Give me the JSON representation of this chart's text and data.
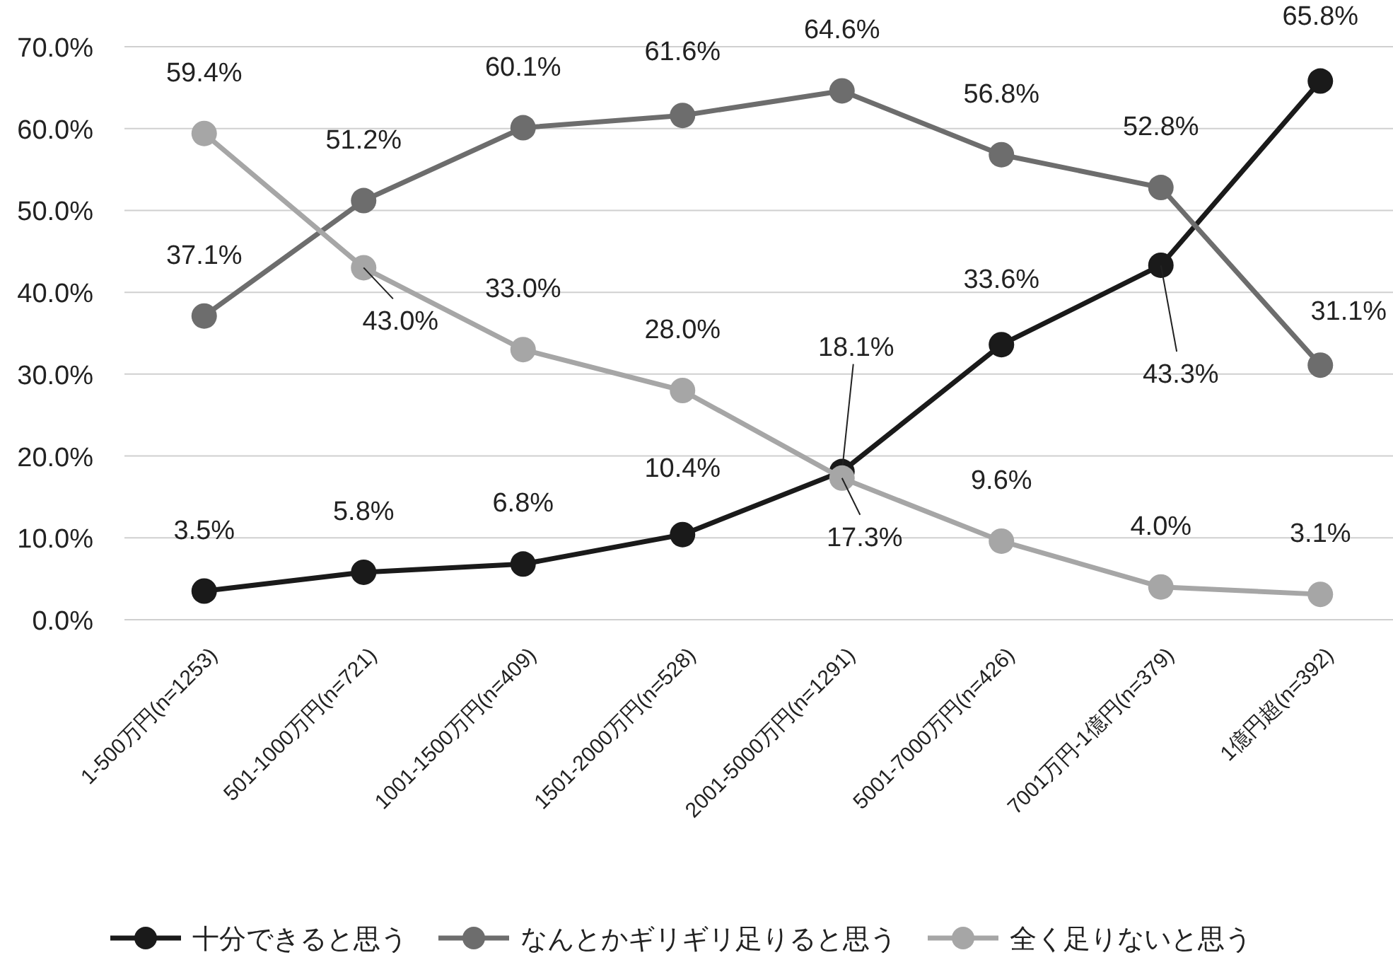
{
  "chart_data": {
    "type": "line",
    "categories": [
      "1-500万円(n=1253)",
      "501-1000万円(n=721)",
      "1001-1500万円(n=409)",
      "1501-2000万円(n=528)",
      "2001-5000万円(n=1291)",
      "5001-7000万円(n=426)",
      "7001万円-1億円(n=379)",
      "1億円超(n=392)"
    ],
    "ylim": [
      0,
      70
    ],
    "yticks": [
      {
        "value": 0,
        "label": "0.0%"
      },
      {
        "value": 10,
        "label": "10.0%"
      },
      {
        "value": 20,
        "label": "20.0%"
      },
      {
        "value": 30,
        "label": "30.0%"
      },
      {
        "value": 40,
        "label": "40.0%"
      },
      {
        "value": 50,
        "label": "50.0%"
      },
      {
        "value": 60,
        "label": "60.0%"
      },
      {
        "value": 70,
        "label": "70.0%"
      }
    ],
    "grid": "y",
    "legend": "bottom",
    "marker": "circle",
    "line_style": "solid",
    "series": [
      {
        "name": "十分できると思う",
        "color": "#1a1a1a",
        "values": [
          3.5,
          5.8,
          6.8,
          10.4,
          18.1,
          33.6,
          43.3,
          65.8
        ],
        "value_labels": [
          "3.5%",
          "5.8%",
          "6.8%",
          "10.4%",
          "18.1%",
          "33.6%",
          "43.3%",
          "65.8%"
        ]
      },
      {
        "name": "なんとかギリギリ足りると思う",
        "color": "#6d6d6d",
        "values": [
          37.1,
          51.2,
          60.1,
          61.6,
          64.6,
          56.8,
          52.8,
          31.1
        ],
        "value_labels": [
          "37.1%",
          "51.2%",
          "60.1%",
          "61.6%",
          "64.6%",
          "56.8%",
          "52.8%",
          "31.1%"
        ]
      },
      {
        "name": "全く足りないと思う",
        "color": "#a6a6a6",
        "values": [
          59.4,
          43.0,
          33.0,
          28.0,
          17.3,
          9.6,
          4.0,
          3.1
        ],
        "value_labels": [
          "59.4%",
          "43.0%",
          "33.0%",
          "28.0%",
          "17.3%",
          "9.6%",
          "4.0%",
          "3.1%"
        ]
      }
    ]
  }
}
